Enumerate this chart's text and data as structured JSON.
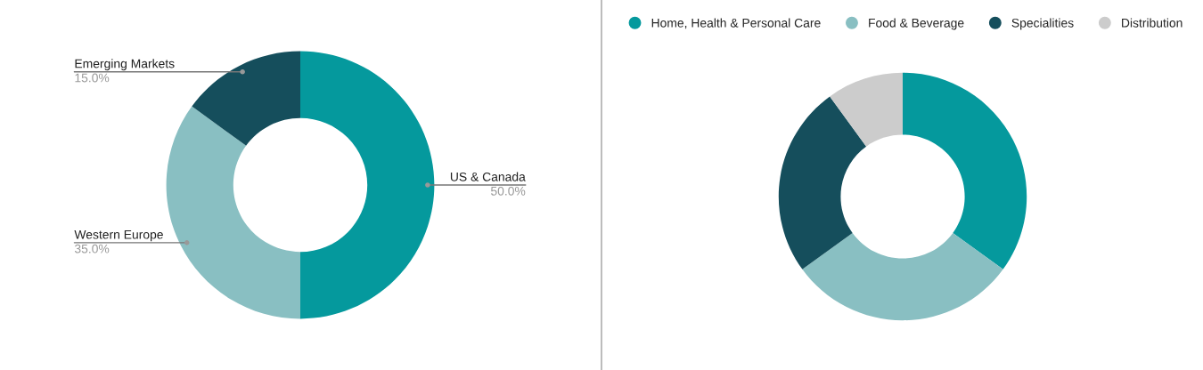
{
  "chart_data": [
    {
      "type": "donut",
      "categories": [
        "US & Canada",
        "Western Europe",
        "Emerging Markets"
      ],
      "values": [
        50,
        35,
        15
      ],
      "colors": [
        "#05999d",
        "#89bfc2",
        "#154e5c"
      ],
      "value_labels": [
        "50.0%",
        "35.0%",
        "15.0%"
      ]
    },
    {
      "type": "donut",
      "categories": [
        "Home, Health & Personal Care",
        "Food & Beverage",
        "Specialities",
        "Distribution"
      ],
      "values": [
        35,
        30,
        25,
        10
      ],
      "colors": [
        "#05999d",
        "#89bfc2",
        "#154e5c",
        "#cccccc"
      ],
      "legend": "top"
    }
  ]
}
